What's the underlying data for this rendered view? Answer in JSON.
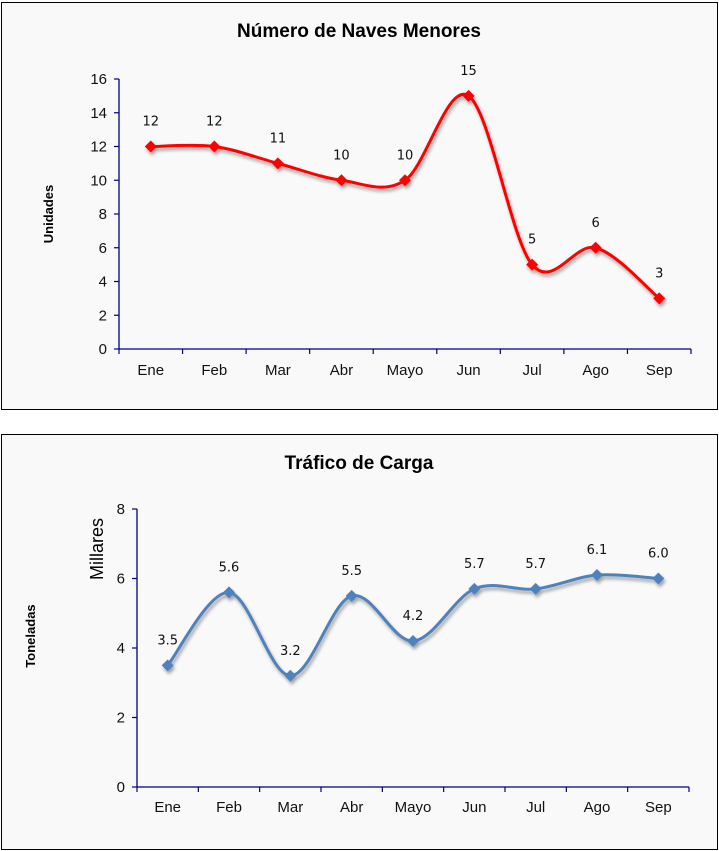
{
  "chart_data": [
    {
      "type": "line",
      "title": "Número de Naves Menores",
      "xlabel": "",
      "ylabel": "Unidades",
      "categories": [
        "Ene",
        "Feb",
        "Mar",
        "Abr",
        "Mayo",
        "Jun",
        "Jul",
        "Ago",
        "Sep"
      ],
      "series": [
        {
          "name": "Naves Menores",
          "values": [
            12,
            12,
            11,
            10,
            10,
            15,
            5,
            6,
            3
          ],
          "labels": [
            "12",
            "12",
            "11",
            "10",
            "10",
            "15",
            "5",
            "6",
            "3"
          ],
          "color": "#ff0000",
          "smooth": true,
          "marker": "diamond"
        }
      ],
      "ylim": [
        0,
        16
      ],
      "yticks": [
        0,
        2,
        4,
        6,
        8,
        10,
        12,
        14,
        16
      ],
      "grid": false,
      "legend": "none",
      "axis_color": "#000080"
    },
    {
      "type": "line",
      "title": "Tráfico de Carga",
      "xlabel": "",
      "ylabel": "Toneladas",
      "yunit_label": "Millares",
      "categories": [
        "Ene",
        "Feb",
        "Mar",
        "Abr",
        "Mayo",
        "Jun",
        "Jul",
        "Ago",
        "Sep"
      ],
      "series": [
        {
          "name": "Tráfico de Carga",
          "values": [
            3.5,
            5.6,
            3.2,
            5.5,
            4.2,
            5.7,
            5.7,
            6.1,
            6.0
          ],
          "labels": [
            "3.5",
            "5.6",
            "3.2",
            "5.5",
            "4.2",
            "5.7",
            "5.7",
            "6.1",
            "6.0"
          ],
          "color": "#4f81bd",
          "smooth": true,
          "marker": "diamond"
        }
      ],
      "ylim": [
        0,
        8
      ],
      "yticks": [
        0,
        2,
        4,
        6,
        8
      ],
      "grid": false,
      "legend": "none",
      "axis_color": "#000080"
    }
  ]
}
